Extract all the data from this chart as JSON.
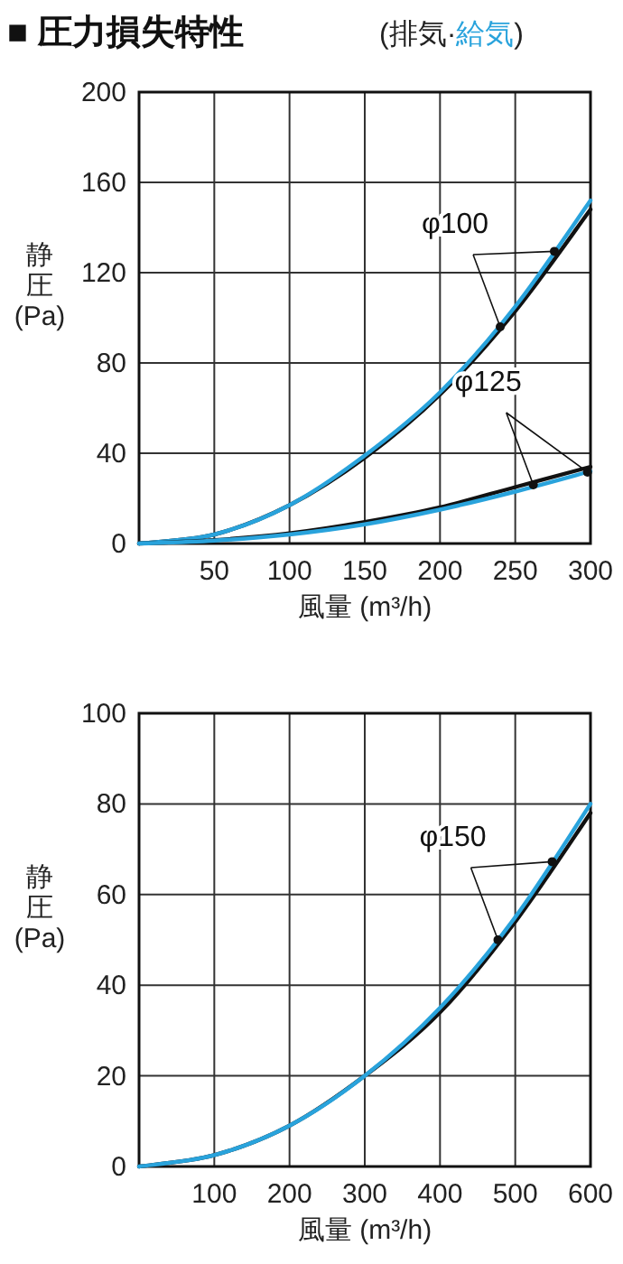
{
  "chart_data": [
    {
      "type": "line",
      "title": "■ 圧力損失特性",
      "subtitle": "(排気·給気)",
      "xlabel": "風量 (m³/h)",
      "ylabel": "静圧(Pa)",
      "x": [
        0,
        50,
        100,
        150,
        200,
        250,
        300
      ],
      "series": [
        {
          "color": "#111111",
          "values": [
            0,
            4,
            17,
            38,
            66,
            103,
            148
          ]
        },
        {
          "color": "#29a3dc",
          "values": [
            0,
            4,
            17,
            39,
            67,
            105,
            152
          ]
        },
        {
          "color": "#111111",
          "values": [
            0,
            1.5,
            4.5,
            9.5,
            16,
            25,
            34
          ]
        },
        {
          "color": "#29a3dc",
          "values": [
            0,
            1.3,
            4,
            8.5,
            15,
            23,
            32
          ]
        }
      ],
      "xlim": [
        0,
        300
      ],
      "xticks": [
        50,
        100,
        150,
        200,
        250,
        300
      ],
      "ylim": [
        0,
        200
      ],
      "yticks": [
        0,
        40,
        80,
        120,
        160,
        200
      ],
      "grid": true,
      "line_style": "solid",
      "annotations": [
        {
          "text": "φ100",
          "x": 240,
          "y": 96
        },
        {
          "text": "φ125",
          "x": 262,
          "y": 26
        }
      ]
    },
    {
      "type": "line",
      "xlabel": "風量 (m³/h)",
      "ylabel": "静圧(Pa)",
      "x": [
        0,
        100,
        200,
        300,
        400,
        500,
        600
      ],
      "series": [
        {
          "color": "#111111",
          "values": [
            0,
            2.5,
            9,
            20,
            34,
            54,
            78
          ]
        },
        {
          "color": "#29a3dc",
          "values": [
            0,
            2.5,
            9,
            20,
            35,
            55,
            80
          ]
        }
      ],
      "xlim": [
        0,
        600
      ],
      "xticks": [
        100,
        200,
        300,
        400,
        500,
        600
      ],
      "ylim": [
        0,
        100
      ],
      "yticks": [
        0,
        20,
        40,
        60,
        80,
        100
      ],
      "grid": true,
      "line_style": "solid",
      "annotations": [
        {
          "text": "φ150",
          "x": 477,
          "y": 50
        }
      ]
    }
  ]
}
